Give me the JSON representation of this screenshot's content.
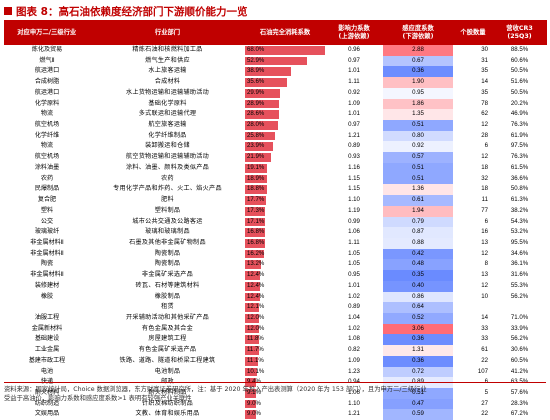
{
  "title": "图表 8：高石油依赖度经济部门下游顺价能力一览",
  "headers": {
    "col1": "对应申万二/三级行业",
    "col2": "行业部门",
    "col3": "石油完全消耗系数",
    "col4": "影响力系数\n(上游依赖)",
    "col5": "感应度系数\n(下游依赖)",
    "col6": "个股数量",
    "col7": "营收CR3\n(25Q3)"
  },
  "rows": [
    {
      "industry": "炼化及贸易",
      "sector": "精炼石油和核燃料加工品",
      "oil": 68.0,
      "influence": "0.96",
      "sensitivity": 2.88,
      "count": "30",
      "cr3": "88.5%"
    },
    {
      "industry": "燃气Ⅱ",
      "sector": "燃气生产和供应",
      "oil": 52.9,
      "influence": "0.97",
      "sensitivity": 0.67,
      "count": "31",
      "cr3": "60.6%"
    },
    {
      "industry": "航运港口",
      "sector": "水上旅客运输",
      "oil": 38.9,
      "influence": "1.01",
      "sensitivity": 0.36,
      "count": "35",
      "cr3": "50.5%"
    },
    {
      "industry": "合成树脂",
      "sector": "合成材料",
      "oil": 35.6,
      "influence": "1.11",
      "sensitivity": 1.9,
      "count": "14",
      "cr3": "51.6%"
    },
    {
      "industry": "航运港口",
      "sector": "水上货物运输和运输辅助活动",
      "oil": 29.9,
      "influence": "0.92",
      "sensitivity": 0.95,
      "count": "35",
      "cr3": "50.5%"
    },
    {
      "industry": "化学原料",
      "sector": "基础化学原料",
      "oil": 28.9,
      "influence": "1.09",
      "sensitivity": 1.86,
      "count": "78",
      "cr3": "20.2%"
    },
    {
      "industry": "物流",
      "sector": "多式联运和运输代理",
      "oil": 28.6,
      "influence": "1.01",
      "sensitivity": 1.35,
      "count": "62",
      "cr3": "46.9%"
    },
    {
      "industry": "航空机场",
      "sector": "航空旅客运输",
      "oil": 28.0,
      "influence": "0.97",
      "sensitivity": 0.51,
      "count": "12",
      "cr3": "76.3%"
    },
    {
      "industry": "化学纤维",
      "sector": "化学纤维制品",
      "oil": 25.8,
      "influence": "1.21",
      "sensitivity": 0.8,
      "count": "28",
      "cr3": "61.9%"
    },
    {
      "industry": "物流",
      "sector": "装卸搬运和仓储",
      "oil": 23.9,
      "influence": "0.89",
      "sensitivity": 0.92,
      "count": "6",
      "cr3": "97.5%"
    },
    {
      "industry": "航空机场",
      "sector": "航空货物运输和运输辅助活动",
      "oil": 21.9,
      "influence": "0.93",
      "sensitivity": 0.57,
      "count": "12",
      "cr3": "76.3%"
    },
    {
      "industry": "涂料油墨",
      "sector": "涂料、油墨、颜料及类似产品",
      "oil": 19.1,
      "influence": "1.16",
      "sensitivity": 0.51,
      "count": "18",
      "cr3": "61.5%"
    },
    {
      "industry": "农药",
      "sector": "农药",
      "oil": 18.9,
      "influence": "1.15",
      "sensitivity": 0.51,
      "count": "32",
      "cr3": "36.6%"
    },
    {
      "industry": "民爆制品",
      "sector": "专用化学产品和炸药、火工、焰火产品",
      "oil": 18.8,
      "influence": "1.15",
      "sensitivity": 1.36,
      "count": "18",
      "cr3": "50.8%"
    },
    {
      "industry": "复合肥",
      "sector": "肥料",
      "oil": 17.7,
      "influence": "1.10",
      "sensitivity": 0.61,
      "count": "11",
      "cr3": "61.3%"
    },
    {
      "industry": "塑料",
      "sector": "塑料制品",
      "oil": 17.3,
      "influence": "1.19",
      "sensitivity": 1.94,
      "count": "77",
      "cr3": "38.2%"
    },
    {
      "industry": "公交",
      "sector": "城市公共交通及公路客运",
      "oil": 17.1,
      "influence": "0.99",
      "sensitivity": 0.79,
      "count": "6",
      "cr3": "54.3%"
    },
    {
      "industry": "玻璃玻纤",
      "sector": "玻璃和玻璃制品",
      "oil": 16.8,
      "influence": "1.06",
      "sensitivity": 0.87,
      "count": "16",
      "cr3": "53.2%"
    },
    {
      "industry": "非金属材料Ⅱ",
      "sector": "石墨及其他非金属矿物制品",
      "oil": 16.8,
      "influence": "1.11",
      "sensitivity": 0.88,
      "count": "13",
      "cr3": "95.5%"
    },
    {
      "industry": "非金属材料Ⅱ",
      "sector": "陶瓷制品",
      "oil": 16.2,
      "influence": "1.05",
      "sensitivity": 0.42,
      "count": "12",
      "cr3": "34.6%"
    },
    {
      "industry": "陶瓷",
      "sector": "陶瓷制品",
      "oil": 13.2,
      "influence": "1.05",
      "sensitivity": 0.48,
      "count": "8",
      "cr3": "36.1%"
    },
    {
      "industry": "非金属材料Ⅱ",
      "sector": "非金属矿采选产品",
      "oil": 12.4,
      "influence": "0.95",
      "sensitivity": 0.35,
      "count": "13",
      "cr3": "31.6%"
    },
    {
      "industry": "装修建材",
      "sector": "砖瓦、石材等建筑材料",
      "oil": 12.4,
      "influence": "1.01",
      "sensitivity": 0.4,
      "count": "12",
      "cr3": "55.3%"
    },
    {
      "industry": "橡胶",
      "sector": "橡胶制品",
      "oil": 12.4,
      "influence": "1.02",
      "sensitivity": 0.86,
      "count": "10",
      "cr3": "56.2%"
    },
    {
      "industry": "",
      "sector": "租赁",
      "oil": 12.1,
      "influence": "0.89",
      "sensitivity": 0.64,
      "count": "",
      "cr3": ""
    },
    {
      "industry": "油服工程",
      "sector": "开采辅助活动和其他采矿产品",
      "oil": 12.0,
      "influence": "1.04",
      "sensitivity": 0.52,
      "count": "14",
      "cr3": "71.0%"
    },
    {
      "industry": "金属新材料",
      "sector": "有色金属及其合金",
      "oil": 12.0,
      "influence": "1.02",
      "sensitivity": 3.06,
      "count": "33",
      "cr3": "33.9%"
    },
    {
      "industry": "基础建设",
      "sector": "房屋建筑工程",
      "oil": 11.8,
      "influence": "1.08",
      "sensitivity": 0.36,
      "count": "33",
      "cr3": "56.2%"
    },
    {
      "industry": "工业金属",
      "sector": "有色金属矿采选产品",
      "oil": 11.7,
      "influence": "0.82",
      "sensitivity": 1.31,
      "count": "61",
      "cr3": "30.6%"
    },
    {
      "industry": "基建市政工程",
      "sector": "铁路、道路、隧道和桥梁工程建筑",
      "oil": 11.1,
      "influence": "1.09",
      "sensitivity": 0.36,
      "count": "22",
      "cr3": "60.5%"
    },
    {
      "industry": "电池",
      "sector": "电池制品",
      "oil": 10.1,
      "influence": "1.23",
      "sensitivity": 0.72,
      "count": "107",
      "cr3": "41.2%"
    },
    {
      "industry": "快递",
      "sector": "邮政",
      "oil": 9.4,
      "influence": "0.94",
      "sensitivity": 0.89,
      "count": "6",
      "cr3": "63.5%"
    },
    {
      "industry": "耐火材料",
      "sector": "耐火材料制品",
      "oil": 9.1,
      "influence": "1.06",
      "sensitivity": 0.51,
      "count": "5",
      "cr3": "57.6%"
    },
    {
      "industry": "纺织制造",
      "sector": "针织及棉纺织制品",
      "oil": 9.0,
      "influence": "1.10",
      "sensitivity": 0.47,
      "count": "27",
      "cr3": "28.3%"
    },
    {
      "industry": "文娱用品",
      "sector": "文教、体育和娱乐用品",
      "oil": 9.0,
      "influence": "1.21",
      "sensitivity": 0.59,
      "count": "22",
      "cr3": "67.2%"
    }
  ],
  "footer": {
    "line1": "资料来源：国家统计局，Choice 数据浏览器，东方财富证券研究所，注：基于 2020 年投入产出表测算（2020 年为 153 部门），且为申万二/三级行业",
    "line2": "受益于高油价，影响力系数和感应度系数>1 表明有较强产业关联性"
  }
}
